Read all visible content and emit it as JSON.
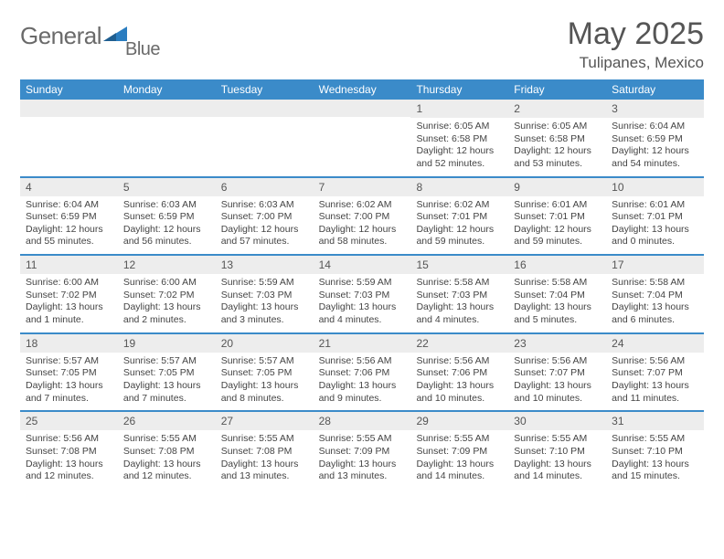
{
  "logo": {
    "part1": "General",
    "part2": "Blue"
  },
  "title": "May 2025",
  "location": "Tulipanes, Mexico",
  "colors": {
    "header_bg": "#3b8bc9",
    "header_text": "#ffffff",
    "daynum_bg": "#ededed",
    "text": "#555555",
    "body_text": "#444444",
    "rule": "#3b8bc9",
    "logo_gray": "#6a6a6a",
    "logo_blue": "#2a7dc0"
  },
  "weekdays": [
    "Sunday",
    "Monday",
    "Tuesday",
    "Wednesday",
    "Thursday",
    "Friday",
    "Saturday"
  ],
  "weeks": [
    [
      {
        "n": "",
        "sr": "",
        "ss": "",
        "dl": ""
      },
      {
        "n": "",
        "sr": "",
        "ss": "",
        "dl": ""
      },
      {
        "n": "",
        "sr": "",
        "ss": "",
        "dl": ""
      },
      {
        "n": "",
        "sr": "",
        "ss": "",
        "dl": ""
      },
      {
        "n": "1",
        "sr": "Sunrise: 6:05 AM",
        "ss": "Sunset: 6:58 PM",
        "dl": "Daylight: 12 hours and 52 minutes."
      },
      {
        "n": "2",
        "sr": "Sunrise: 6:05 AM",
        "ss": "Sunset: 6:58 PM",
        "dl": "Daylight: 12 hours and 53 minutes."
      },
      {
        "n": "3",
        "sr": "Sunrise: 6:04 AM",
        "ss": "Sunset: 6:59 PM",
        "dl": "Daylight: 12 hours and 54 minutes."
      }
    ],
    [
      {
        "n": "4",
        "sr": "Sunrise: 6:04 AM",
        "ss": "Sunset: 6:59 PM",
        "dl": "Daylight: 12 hours and 55 minutes."
      },
      {
        "n": "5",
        "sr": "Sunrise: 6:03 AM",
        "ss": "Sunset: 6:59 PM",
        "dl": "Daylight: 12 hours and 56 minutes."
      },
      {
        "n": "6",
        "sr": "Sunrise: 6:03 AM",
        "ss": "Sunset: 7:00 PM",
        "dl": "Daylight: 12 hours and 57 minutes."
      },
      {
        "n": "7",
        "sr": "Sunrise: 6:02 AM",
        "ss": "Sunset: 7:00 PM",
        "dl": "Daylight: 12 hours and 58 minutes."
      },
      {
        "n": "8",
        "sr": "Sunrise: 6:02 AM",
        "ss": "Sunset: 7:01 PM",
        "dl": "Daylight: 12 hours and 59 minutes."
      },
      {
        "n": "9",
        "sr": "Sunrise: 6:01 AM",
        "ss": "Sunset: 7:01 PM",
        "dl": "Daylight: 12 hours and 59 minutes."
      },
      {
        "n": "10",
        "sr": "Sunrise: 6:01 AM",
        "ss": "Sunset: 7:01 PM",
        "dl": "Daylight: 13 hours and 0 minutes."
      }
    ],
    [
      {
        "n": "11",
        "sr": "Sunrise: 6:00 AM",
        "ss": "Sunset: 7:02 PM",
        "dl": "Daylight: 13 hours and 1 minute."
      },
      {
        "n": "12",
        "sr": "Sunrise: 6:00 AM",
        "ss": "Sunset: 7:02 PM",
        "dl": "Daylight: 13 hours and 2 minutes."
      },
      {
        "n": "13",
        "sr": "Sunrise: 5:59 AM",
        "ss": "Sunset: 7:03 PM",
        "dl": "Daylight: 13 hours and 3 minutes."
      },
      {
        "n": "14",
        "sr": "Sunrise: 5:59 AM",
        "ss": "Sunset: 7:03 PM",
        "dl": "Daylight: 13 hours and 4 minutes."
      },
      {
        "n": "15",
        "sr": "Sunrise: 5:58 AM",
        "ss": "Sunset: 7:03 PM",
        "dl": "Daylight: 13 hours and 4 minutes."
      },
      {
        "n": "16",
        "sr": "Sunrise: 5:58 AM",
        "ss": "Sunset: 7:04 PM",
        "dl": "Daylight: 13 hours and 5 minutes."
      },
      {
        "n": "17",
        "sr": "Sunrise: 5:58 AM",
        "ss": "Sunset: 7:04 PM",
        "dl": "Daylight: 13 hours and 6 minutes."
      }
    ],
    [
      {
        "n": "18",
        "sr": "Sunrise: 5:57 AM",
        "ss": "Sunset: 7:05 PM",
        "dl": "Daylight: 13 hours and 7 minutes."
      },
      {
        "n": "19",
        "sr": "Sunrise: 5:57 AM",
        "ss": "Sunset: 7:05 PM",
        "dl": "Daylight: 13 hours and 7 minutes."
      },
      {
        "n": "20",
        "sr": "Sunrise: 5:57 AM",
        "ss": "Sunset: 7:05 PM",
        "dl": "Daylight: 13 hours and 8 minutes."
      },
      {
        "n": "21",
        "sr": "Sunrise: 5:56 AM",
        "ss": "Sunset: 7:06 PM",
        "dl": "Daylight: 13 hours and 9 minutes."
      },
      {
        "n": "22",
        "sr": "Sunrise: 5:56 AM",
        "ss": "Sunset: 7:06 PM",
        "dl": "Daylight: 13 hours and 10 minutes."
      },
      {
        "n": "23",
        "sr": "Sunrise: 5:56 AM",
        "ss": "Sunset: 7:07 PM",
        "dl": "Daylight: 13 hours and 10 minutes."
      },
      {
        "n": "24",
        "sr": "Sunrise: 5:56 AM",
        "ss": "Sunset: 7:07 PM",
        "dl": "Daylight: 13 hours and 11 minutes."
      }
    ],
    [
      {
        "n": "25",
        "sr": "Sunrise: 5:56 AM",
        "ss": "Sunset: 7:08 PM",
        "dl": "Daylight: 13 hours and 12 minutes."
      },
      {
        "n": "26",
        "sr": "Sunrise: 5:55 AM",
        "ss": "Sunset: 7:08 PM",
        "dl": "Daylight: 13 hours and 12 minutes."
      },
      {
        "n": "27",
        "sr": "Sunrise: 5:55 AM",
        "ss": "Sunset: 7:08 PM",
        "dl": "Daylight: 13 hours and 13 minutes."
      },
      {
        "n": "28",
        "sr": "Sunrise: 5:55 AM",
        "ss": "Sunset: 7:09 PM",
        "dl": "Daylight: 13 hours and 13 minutes."
      },
      {
        "n": "29",
        "sr": "Sunrise: 5:55 AM",
        "ss": "Sunset: 7:09 PM",
        "dl": "Daylight: 13 hours and 14 minutes."
      },
      {
        "n": "30",
        "sr": "Sunrise: 5:55 AM",
        "ss": "Sunset: 7:10 PM",
        "dl": "Daylight: 13 hours and 14 minutes."
      },
      {
        "n": "31",
        "sr": "Sunrise: 5:55 AM",
        "ss": "Sunset: 7:10 PM",
        "dl": "Daylight: 13 hours and 15 minutes."
      }
    ]
  ]
}
